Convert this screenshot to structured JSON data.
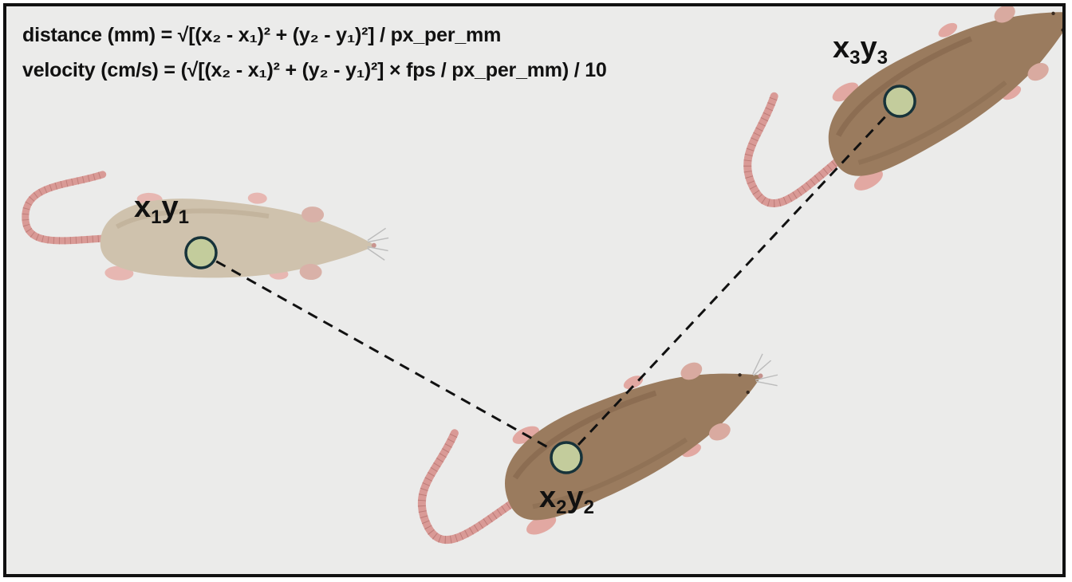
{
  "formulas": {
    "distance": "distance (mm) = √[(x₂ - x₁)² + (y₂ - y₁)²] / px_per_mm",
    "velocity": "velocity (cm/s) = (√[(x₂ - x₁)² + (y₂ - y₁)²] × fps / px_per_mm) / 10"
  },
  "points": [
    {
      "id": "p1",
      "label_main_x": "x",
      "sub_x": "1",
      "label_main_y": "y",
      "sub_y": "1"
    },
    {
      "id": "p2",
      "label_main_x": "x",
      "sub_x": "2",
      "label_main_y": "y",
      "sub_y": "2"
    },
    {
      "id": "p3",
      "label_main_x": "x",
      "sub_x": "3",
      "label_main_y": "y",
      "sub_y": "3"
    }
  ],
  "colors": {
    "background": "#ebebea",
    "border": "#111111",
    "marker_fill": "#c3cc9c",
    "marker_stroke": "#17333a",
    "rat_light_body": "#cfc2ad",
    "rat_dark_body": "#9a7b5e",
    "rat_tail": "#d99a96",
    "path_line": "#111111"
  },
  "icons": [
    "rat-light-icon",
    "rat-dark-icon",
    "position-marker-icon"
  ]
}
